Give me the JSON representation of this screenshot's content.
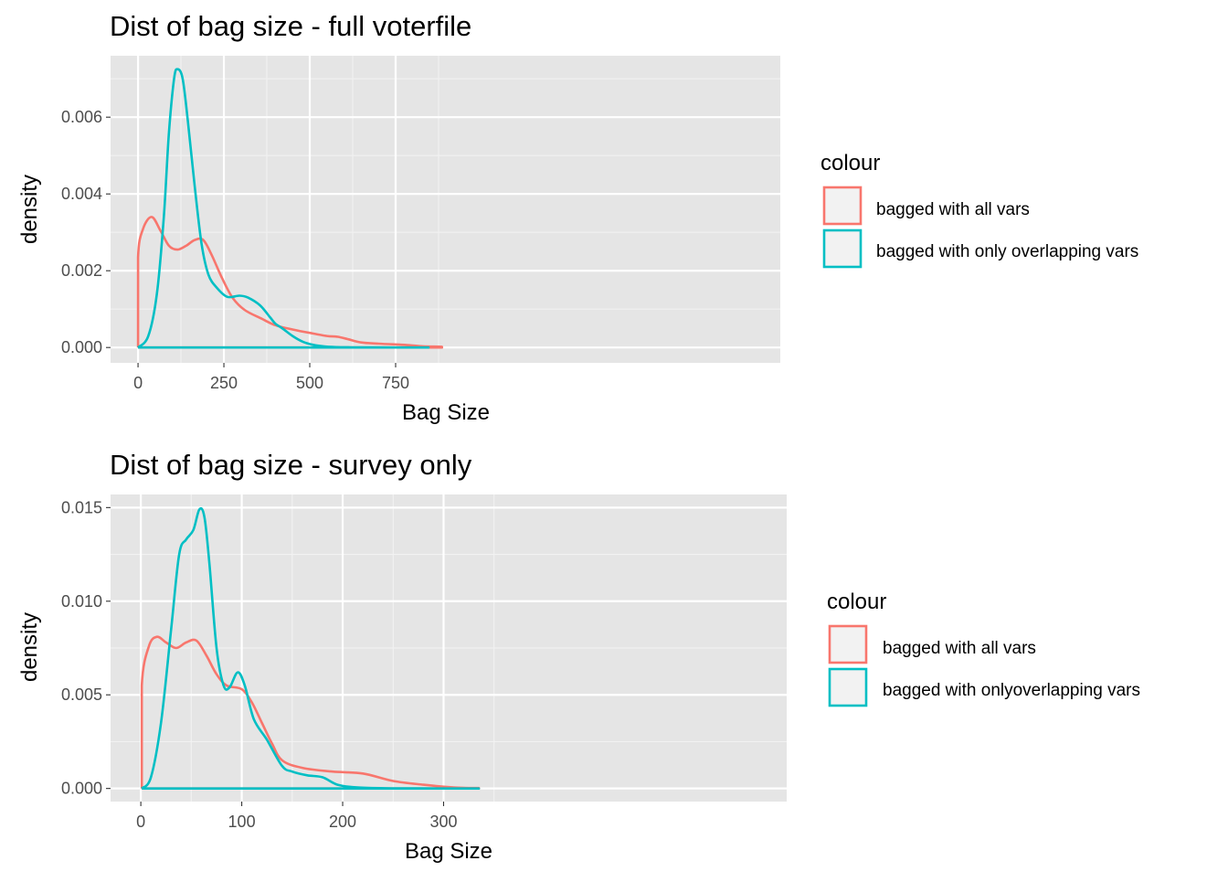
{
  "colors": {
    "red": "#F8766D",
    "teal": "#00BFC4"
  },
  "chart_data": [
    {
      "type": "line",
      "title": "Dist of bag size - full voterfile",
      "xlabel": "Bag Size",
      "ylabel": "density",
      "xlim": [
        -80,
        1870
      ],
      "ylim": [
        -0.0004,
        0.0076
      ],
      "x_ticks": [
        0,
        250,
        500,
        750
      ],
      "x_tick_labels": [
        "0",
        "250",
        "500",
        "750"
      ],
      "y_ticks": [
        0,
        0.002,
        0.004,
        0.006
      ],
      "y_tick_labels": [
        "0.000",
        "0.002",
        "0.004",
        "0.006"
      ],
      "grid": true,
      "legend": {
        "title": "colour",
        "position": "right",
        "entries": [
          "bagged with all vars",
          "bagged with only overlapping vars"
        ]
      },
      "series": [
        {
          "name": "bagged with all vars",
          "color": "#F8766D",
          "x": [
            0,
            0,
            15,
            40,
            65,
            90,
            115,
            140,
            165,
            190,
            215,
            245,
            275,
            310,
            360,
            400,
            450,
            500,
            550,
            580,
            610,
            650,
            700,
            750,
            790,
            830,
            885,
            885,
            0
          ],
          "y": [
            0,
            0.00235,
            0.0031,
            0.0034,
            0.00305,
            0.00265,
            0.00255,
            0.00265,
            0.0028,
            0.0028,
            0.0024,
            0.0018,
            0.0013,
            0.00098,
            0.00075,
            0.00058,
            0.00047,
            0.00038,
            0.0003,
            0.00028,
            0.00022,
            0.00013,
            0.0001,
            8e-05,
            6e-05,
            3e-05,
            2e-05,
            0,
            0
          ]
        },
        {
          "name": "bagged with only overlapping vars",
          "color": "#00BFC4",
          "x": [
            0,
            30,
            55,
            75,
            90,
            105,
            115,
            130,
            145,
            165,
            185,
            205,
            230,
            260,
            295,
            320,
            355,
            385,
            400,
            420,
            450,
            480,
            510,
            540,
            580,
            620,
            680,
            740,
            800,
            0
          ],
          "y": [
            0,
            0.0003,
            0.0014,
            0.0034,
            0.0056,
            0.007,
            0.00725,
            0.007,
            0.0059,
            0.0042,
            0.0027,
            0.0019,
            0.00155,
            0.00132,
            0.00135,
            0.0013,
            0.0011,
            0.00078,
            0.00062,
            0.0005,
            0.0003,
            0.00015,
            7e-05,
            3e-05,
            1e-05,
            5e-06,
            2e-06,
            1e-06,
            0,
            0
          ]
        }
      ]
    },
    {
      "type": "line",
      "title": "Dist of bag size - survey only",
      "xlabel": "Bag Size",
      "ylabel": "density",
      "xlim": [
        -30,
        640
      ],
      "ylim": [
        -0.0007,
        0.0157
      ],
      "x_ticks": [
        0,
        100,
        200,
        300
      ],
      "x_tick_labels": [
        "0",
        "100",
        "200",
        "300"
      ],
      "y_ticks": [
        0,
        0.005,
        0.01,
        0.015
      ],
      "y_tick_labels": [
        "0.000",
        "0.005",
        "0.010",
        "0.015"
      ],
      "grid": true,
      "legend": {
        "title": "colour",
        "position": "right",
        "entries": [
          "bagged with all vars",
          "bagged with onlyoverlapping vars"
        ]
      },
      "series": [
        {
          "name": "bagged with all vars",
          "color": "#F8766D",
          "x": [
            1,
            1,
            8,
            16,
            25,
            35,
            45,
            55,
            65,
            75,
            85,
            100,
            110,
            120,
            130,
            140,
            160,
            190,
            220,
            250,
            280,
            310,
            335,
            335,
            1
          ],
          "y": [
            0,
            0.0055,
            0.0076,
            0.0081,
            0.0078,
            0.0075,
            0.0078,
            0.0079,
            0.0071,
            0.0061,
            0.0055,
            0.0053,
            0.0046,
            0.0035,
            0.0024,
            0.0015,
            0.0011,
            0.0009,
            0.0008,
            0.0004,
            0.0002,
            5e-05,
            2e-05,
            0,
            0
          ]
        },
        {
          "name": "bagged with onlyoverlapping vars",
          "color": "#00BFC4",
          "x": [
            1,
            10,
            20,
            30,
            38,
            45,
            52,
            58,
            63,
            68,
            75,
            82,
            88,
            96,
            103,
            112,
            125,
            140,
            150,
            165,
            180,
            195,
            215,
            250,
            300,
            335,
            1
          ],
          "y": [
            0,
            0.0006,
            0.0035,
            0.0085,
            0.0125,
            0.0133,
            0.0138,
            0.0149,
            0.0145,
            0.012,
            0.0075,
            0.0055,
            0.0054,
            0.0062,
            0.0055,
            0.0037,
            0.0026,
            0.0012,
            0.0009,
            0.0007,
            0.0006,
            0.0002,
            5e-05,
            1e-05,
            0,
            0,
            0
          ]
        }
      ]
    }
  ]
}
